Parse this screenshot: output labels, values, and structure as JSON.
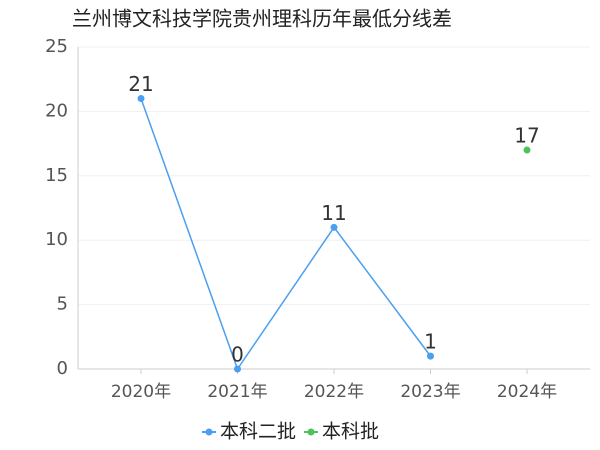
{
  "chart_data": {
    "type": "line",
    "title": "兰州博文科技学院贵州理科历年最低分线差",
    "categories": [
      "2020年",
      "2021年",
      "2022年",
      "2023年",
      "2024年"
    ],
    "series": [
      {
        "name": "本科二批",
        "color": "#4a9ff0",
        "values": [
          21,
          0,
          11,
          1,
          null
        ]
      },
      {
        "name": "本科批",
        "color": "#4cc25a",
        "values": [
          null,
          null,
          null,
          null,
          17
        ]
      }
    ],
    "ylim": [
      0,
      25
    ],
    "yticks": [
      0,
      5,
      10,
      15,
      20,
      25
    ],
    "grid": true
  }
}
